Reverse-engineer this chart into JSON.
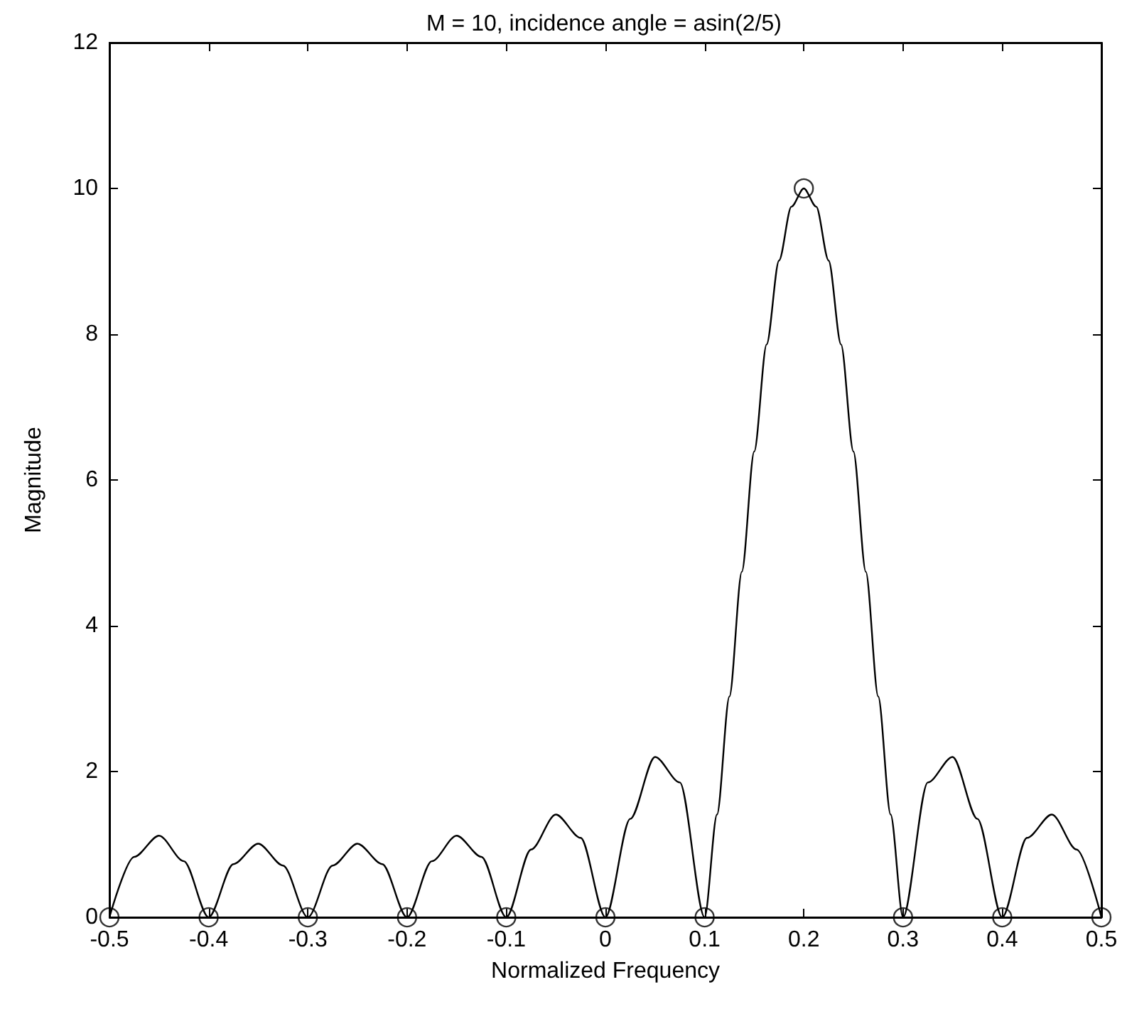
{
  "chart_data": {
    "type": "line",
    "title": "M = 10, incidence angle = asin(2/5)",
    "xlabel": "Normalized Frequency",
    "ylabel": "Magnitude",
    "xlim": [
      -0.5,
      0.5
    ],
    "xticks": [
      -0.5,
      -0.4,
      -0.3,
      -0.2,
      -0.1,
      0,
      0.1,
      0.2,
      0.3,
      0.4,
      0.5
    ],
    "ylim": [
      0,
      12
    ],
    "yticks": [
      0,
      2,
      4,
      6,
      8,
      10,
      12
    ],
    "grid": false,
    "series": [
      {
        "color": "#000000",
        "line_style": "solid",
        "x": [
          -0.5,
          -0.475,
          -0.45,
          -0.425,
          -0.4,
          -0.375,
          -0.35,
          -0.325,
          -0.3,
          -0.275,
          -0.25,
          -0.225,
          -0.2,
          -0.175,
          -0.15,
          -0.125,
          -0.1,
          -0.075,
          -0.05,
          -0.025,
          0,
          0.025,
          0.05,
          0.075,
          0.1,
          0.1125,
          0.125,
          0.1375,
          0.15,
          0.1625,
          0.175,
          0.1875,
          0.2,
          0.2125,
          0.225,
          0.2375,
          0.25,
          0.2625,
          0.275,
          0.2875,
          0.3,
          0.325,
          0.35,
          0.375,
          0.4,
          0.425,
          0.45,
          0.475,
          0.5
        ],
        "values": [
          0,
          0.83,
          1.12,
          0.77,
          0,
          0.73,
          1.01,
          0.71,
          0,
          0.71,
          1.01,
          0.73,
          0,
          0.77,
          1.12,
          0.83,
          0,
          0.93,
          1.41,
          1.09,
          0,
          1.35,
          2.2,
          1.85,
          0,
          1.41,
          3.03,
          4.74,
          6.39,
          7.86,
          9.01,
          9.75,
          10,
          9.75,
          9.01,
          7.86,
          6.39,
          4.74,
          3.03,
          1.41,
          0,
          1.85,
          2.2,
          1.35,
          0,
          1.09,
          1.41,
          0.93,
          0
        ]
      },
      {
        "type": "scatter",
        "color": "#000000",
        "marker": "circle",
        "x": [
          -0.5,
          -0.4,
          -0.3,
          -0.2,
          -0.1,
          0,
          0.1,
          0.2,
          0.3,
          0.4,
          0.5
        ],
        "values": [
          0,
          0,
          0,
          0,
          0,
          0,
          0,
          10,
          0,
          0,
          0
        ]
      }
    ]
  }
}
